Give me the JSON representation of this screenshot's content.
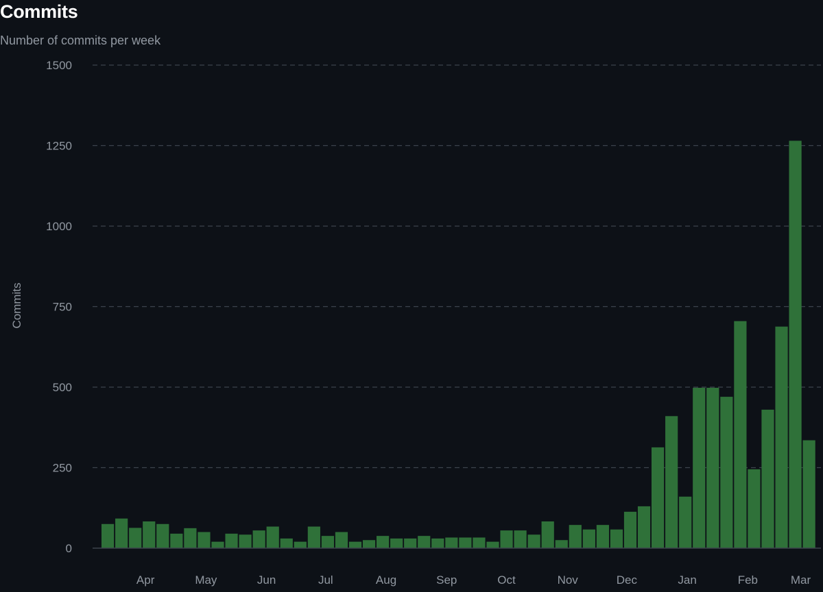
{
  "header": {
    "title": "Commits",
    "subtitle": "Number of commits per week"
  },
  "colors": {
    "background": "#0d1117",
    "bar": "#2f7139",
    "grid": "#3d444d",
    "axis_text": "#9198a1"
  },
  "chart_data": {
    "type": "bar",
    "title": "Commits",
    "subtitle": "Number of commits per week",
    "ylabel": "Commits",
    "xlabel": "",
    "ylim": [
      0,
      1500
    ],
    "yticks": [
      0,
      250,
      500,
      750,
      1000,
      1250,
      1500
    ],
    "grid": true,
    "legend": "none",
    "month_ticks": [
      {
        "label": "Apr",
        "week": 3.2
      },
      {
        "label": "May",
        "week": 7.6
      },
      {
        "label": "Jun",
        "week": 12.0
      },
      {
        "label": "Jul",
        "week": 16.3
      },
      {
        "label": "Aug",
        "week": 20.7
      },
      {
        "label": "Sep",
        "week": 25.1
      },
      {
        "label": "Oct",
        "week": 29.45
      },
      {
        "label": "Nov",
        "week": 33.9
      },
      {
        "label": "Dec",
        "week": 38.2
      },
      {
        "label": "Jan",
        "week": 42.6
      },
      {
        "label": "Feb",
        "week": 47.0
      },
      {
        "label": "Mar",
        "week": 50.85
      }
    ],
    "values": [
      75,
      92,
      63,
      83,
      75,
      45,
      62,
      50,
      20,
      45,
      42,
      55,
      67,
      30,
      20,
      67,
      38,
      50,
      20,
      25,
      38,
      30,
      30,
      38,
      30,
      33,
      33,
      33,
      20,
      55,
      55,
      42,
      83,
      25,
      72,
      58,
      72,
      58,
      113,
      130,
      313,
      410,
      160,
      498,
      498,
      470,
      705,
      245,
      430,
      688,
      1265,
      335
    ]
  }
}
